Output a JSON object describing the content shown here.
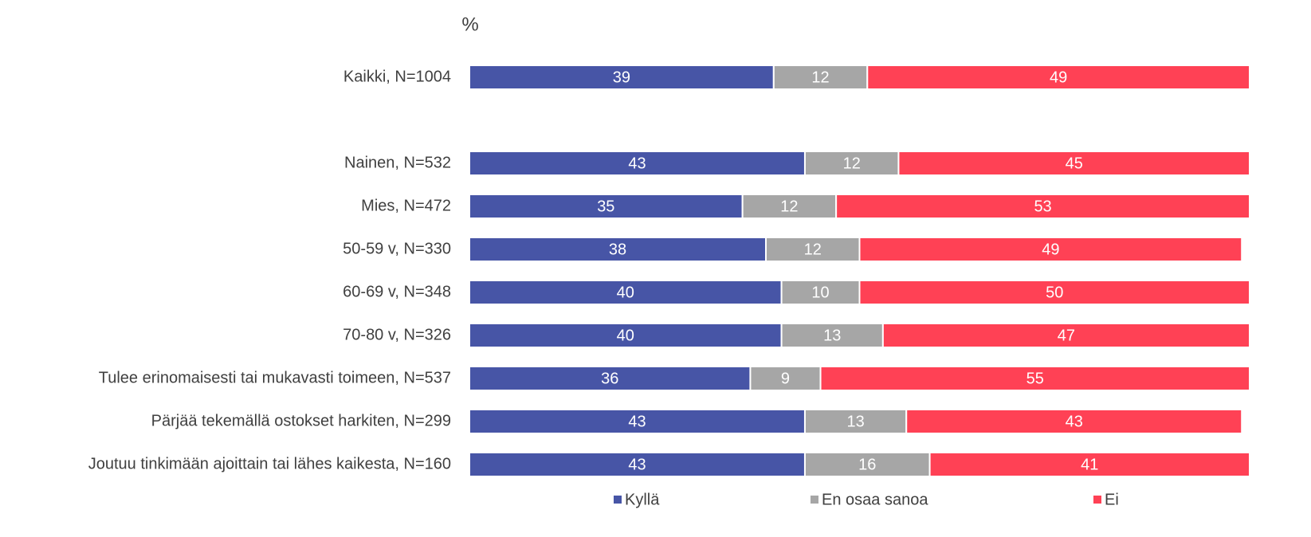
{
  "chart_data": {
    "type": "stacked-bar",
    "orientation": "horizontal",
    "title": "%",
    "categories": [
      "Kaikki, N=1004",
      null,
      "Nainen, N=532",
      "Mies, N=472",
      "50-59 v, N=330",
      "60-69 v, N=348",
      "70-80 v, N=326",
      "Tulee erinomaisesti tai mukavasti toimeen, N=537",
      "Pärjää tekemällä ostokset harkiten, N=299",
      "Joutuu tinkimään ajoittain tai lähes kaikesta, N=160"
    ],
    "series": [
      {
        "name": "Kyllä",
        "color": "#4755a6",
        "values": [
          39,
          null,
          43,
          35,
          38,
          40,
          40,
          36,
          43,
          43
        ]
      },
      {
        "name": "En osaa sanoa",
        "color": "#a6a6a6",
        "values": [
          12,
          null,
          12,
          12,
          12,
          10,
          13,
          9,
          13,
          16
        ]
      },
      {
        "name": "Ei",
        "color": "#ff4155",
        "values": [
          49,
          null,
          45,
          53,
          49,
          50,
          47,
          55,
          43,
          41
        ]
      }
    ],
    "xlim": [
      0,
      100
    ],
    "legend": "bottom"
  }
}
